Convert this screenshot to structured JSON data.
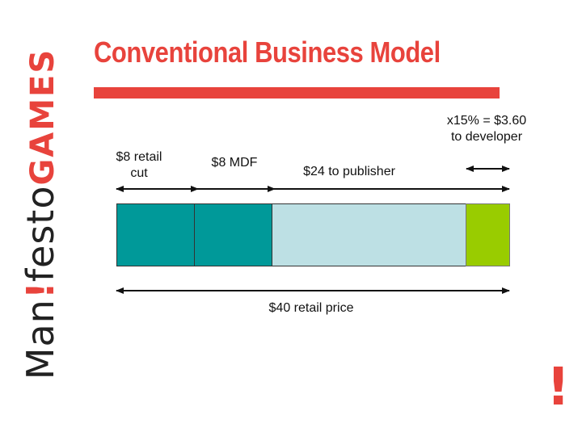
{
  "logo": {
    "part_man": "Man",
    "part_bang": "!",
    "part_festo": "festo",
    "part_games": "GAMES"
  },
  "title": "Conventional Business Model",
  "labels": {
    "retail_cut_line1": "$8 retail",
    "retail_cut_line2": "cut",
    "mdf": "$8 MDF",
    "publisher": "$24 to publisher",
    "developer_line1": "x15% = $3.60",
    "developer_line2": "to developer",
    "retail_price": "$40 retail price"
  },
  "segments": [
    {
      "name": "retail cut",
      "amount": 8,
      "color": "#009999"
    },
    {
      "name": "MDF",
      "amount": 8,
      "color": "#009999"
    },
    {
      "name": "publisher (before developer share)",
      "amount": 20.4,
      "color": "#bde0e4"
    },
    {
      "name": "developer",
      "amount": 3.6,
      "color": "#99cc00"
    }
  ],
  "colors": {
    "brand_red": "#e8433c",
    "teal": "#009999",
    "light_blue": "#bde0e4",
    "green": "#99cc00"
  },
  "corner_mark": "!"
}
